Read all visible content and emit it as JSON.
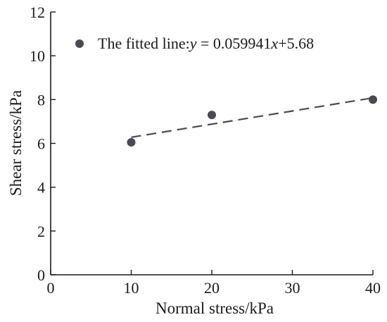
{
  "chart_data": {
    "type": "scatter",
    "title": "",
    "xlabel": "Normal stress/kPa",
    "ylabel": "Shear stress/kPa",
    "xlim": [
      0,
      40
    ],
    "ylim": [
      0,
      12
    ],
    "x_ticks": [
      0,
      10,
      20,
      30,
      40
    ],
    "y_ticks": [
      0,
      2,
      4,
      6,
      8,
      10,
      12
    ],
    "x_tick_labels": [
      "0",
      "10",
      "20",
      "30",
      "40"
    ],
    "y_tick_labels": [
      "0",
      "2",
      "4",
      "6",
      "8",
      "10",
      "12"
    ],
    "grid": false,
    "legend_position": "top-left",
    "series": [
      {
        "name": "The fitted line:y = 0.059941x+5.68",
        "x": [
          10,
          20,
          40
        ],
        "y": [
          6.05,
          7.3,
          8.0
        ],
        "color": "#4a4a55",
        "marker": "circle"
      }
    ],
    "fitted_line": {
      "slope": 0.059941,
      "intercept": 5.68,
      "x_range": [
        10,
        40
      ],
      "style": "dashed",
      "color": "#4a4a55"
    },
    "legend": {
      "prefix": "The fitted line:",
      "var_y": "y",
      "equals": " = 0.059941",
      "var_x": "x",
      "suffix": "+5.68"
    }
  }
}
